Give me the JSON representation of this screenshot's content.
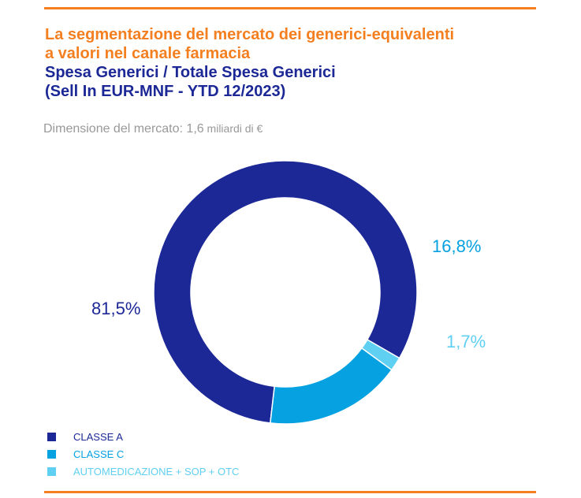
{
  "title": {
    "line1": "La segmentazione del mercato dei generici-equivalenti",
    "line2": "a valori nel canale farmacia",
    "line3": "Spesa Generici / Totale Spesa Generici",
    "line4": "(Sell In EUR-MNF - YTD 12/2023)"
  },
  "market_size": {
    "label": "Dimensione del mercato: 1,6",
    "unit": " miliardi di €"
  },
  "colors": {
    "accent_orange": "#f47f20",
    "title_blue": "#1c2896",
    "classe_a": "#1c2896",
    "classe_c": "#05a1e0",
    "automedicazione": "#5fcff2"
  },
  "chart_data": {
    "type": "pie",
    "donut": true,
    "categories": [
      "CLASSE A",
      "CLASSE C",
      "AUTOMEDICAZIONE + SOP + OTC"
    ],
    "values": [
      81.5,
      16.8,
      1.7
    ],
    "value_labels": [
      "81,5%",
      "16,8%",
      "1,7%"
    ],
    "colors": [
      "#1c2896",
      "#05a1e0",
      "#5fcff2"
    ],
    "legend_placement": "bottom-left"
  }
}
